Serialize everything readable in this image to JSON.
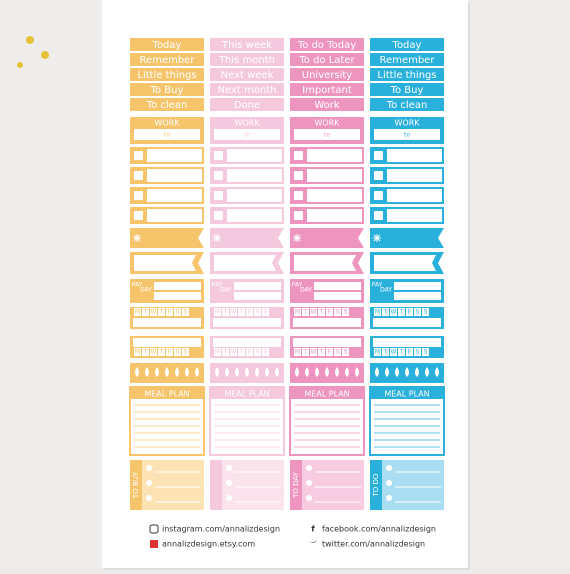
{
  "columns": [
    {
      "color": "#f6c46b",
      "light": "#fde3b4",
      "labels": [
        "Today",
        "Remember",
        "Little things",
        "To Buy",
        "To clean"
      ],
      "list": "TO BUY"
    },
    {
      "color": "#f5c9dd",
      "light": "#fbe3ee",
      "labels": [
        "This week",
        "This month",
        "Next week",
        "Next month",
        "Done"
      ]
    },
    {
      "color": "#ee95bf",
      "light": "#f8cce0",
      "labels": [
        "To do Today",
        "To do Later",
        "University",
        "Important",
        "Work"
      ],
      "list": "TO DAY"
    },
    {
      "color": "#29b1dc",
      "light": "#a9def2",
      "labels": [
        "Today",
        "Remember",
        "Little things",
        "To Buy",
        "To clean"
      ],
      "list": "TO DO"
    }
  ],
  "work": "WORK",
  "to": "to",
  "pay": [
    "PAY",
    "DAY"
  ],
  "weekdays": [
    "M",
    "T",
    "W",
    "T",
    "F",
    "S",
    "S"
  ],
  "meal": "MEAL PLAN",
  "footer": {
    "instagram": "instagram.com/annalizdesign",
    "etsy": "annalizdesign.etsy.com",
    "facebook": "facebook.com/annalizdesign",
    "twitter": "twitter.com/annalizdesign"
  }
}
